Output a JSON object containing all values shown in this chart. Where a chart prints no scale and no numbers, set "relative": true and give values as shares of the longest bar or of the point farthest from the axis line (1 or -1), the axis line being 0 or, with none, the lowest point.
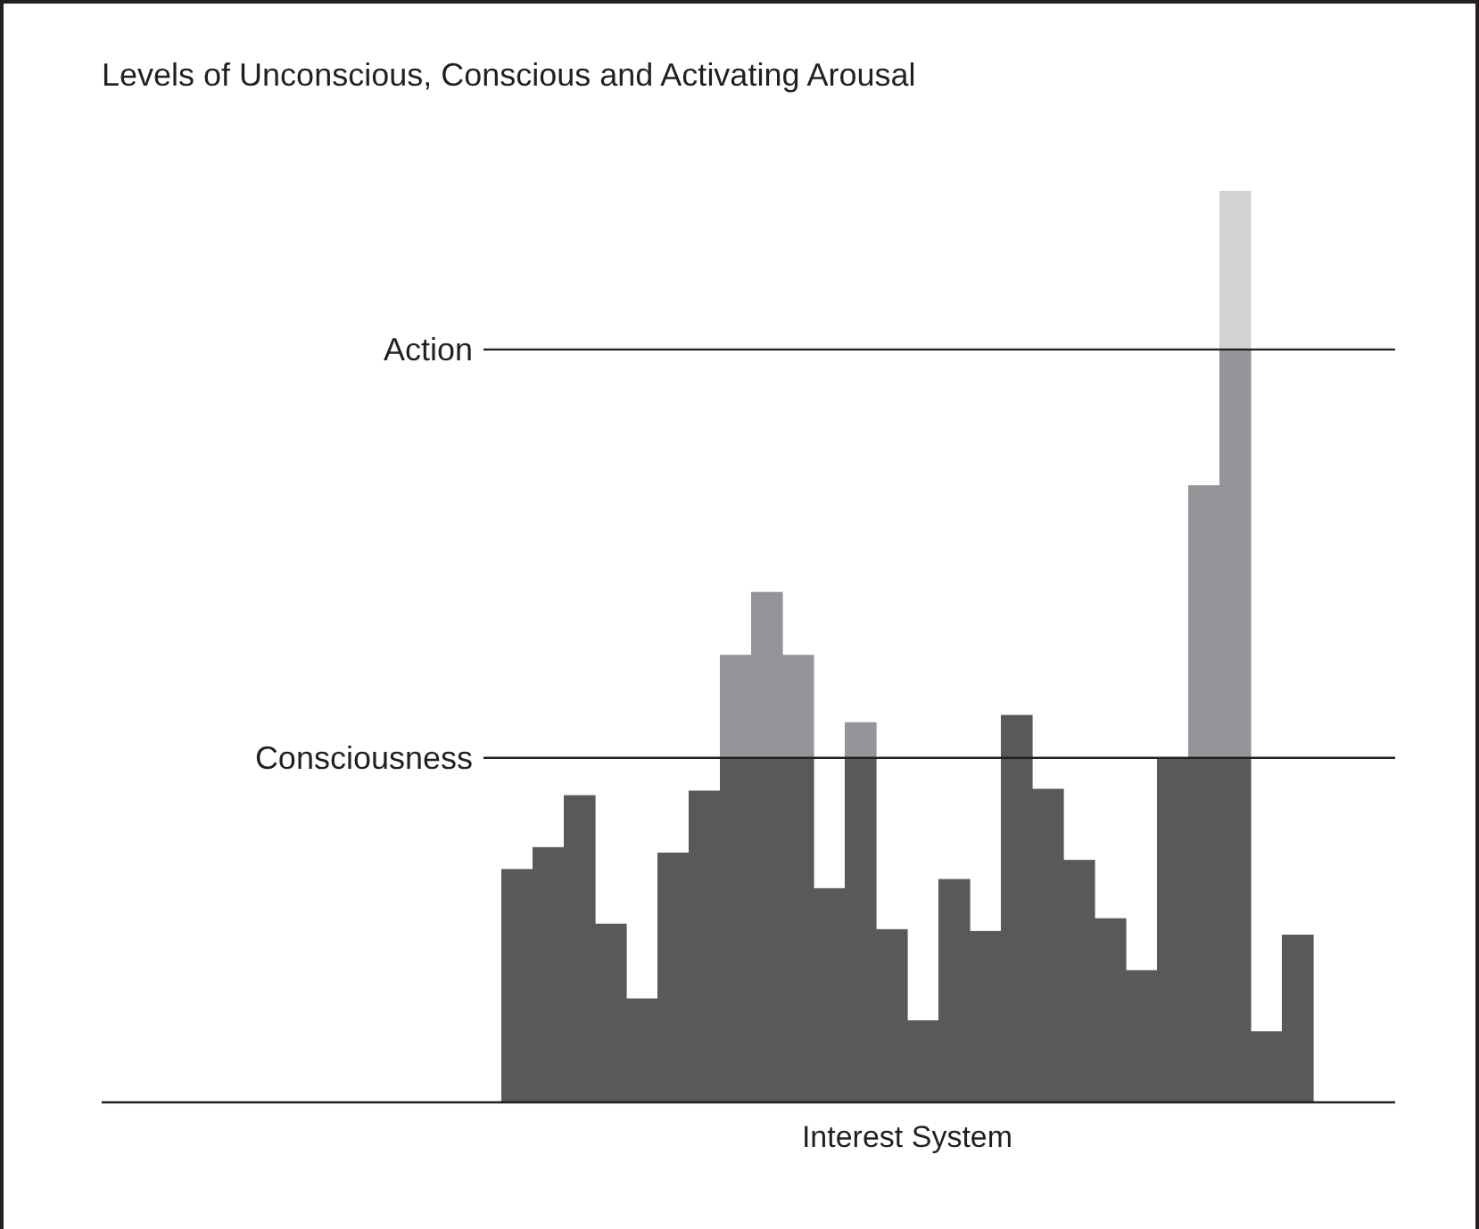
{
  "chart_data": {
    "type": "bar",
    "title": "Levels of Unconscious, Conscious and Activating Arousal",
    "xlabel": "Interest System",
    "relative": true,
    "stacked": true,
    "categories": [
      null,
      null,
      null,
      null,
      null,
      null,
      null,
      null,
      null,
      null,
      null,
      null,
      null,
      null,
      null,
      null,
      null,
      null,
      null,
      null,
      null,
      null,
      null,
      null,
      null,
      null
    ],
    "series": [
      {
        "color": "#58595b",
        "values": [
          0.256,
          0.28,
          0.337,
          0.196,
          0.114,
          0.274,
          0.342,
          0.378,
          0.378,
          0.378,
          0.235,
          0.378,
          0.19,
          0.09,
          0.245,
          0.188,
          0.425,
          0.344,
          0.266,
          0.202,
          0.145,
          0.378,
          0.378,
          0.378,
          0.078,
          0.184
        ]
      },
      {
        "color": "#939598",
        "values": [
          null,
          null,
          null,
          null,
          null,
          null,
          null,
          0.113,
          0.182,
          0.113,
          null,
          0.039,
          null,
          null,
          null,
          null,
          null,
          null,
          null,
          null,
          null,
          null,
          0.299,
          0.448,
          null,
          null
        ]
      },
      {
        "color": "#d1d3d4",
        "values": [
          null,
          null,
          null,
          null,
          null,
          null,
          null,
          null,
          null,
          null,
          null,
          null,
          null,
          null,
          null,
          null,
          null,
          null,
          null,
          null,
          null,
          null,
          null,
          0.174,
          null,
          null
        ]
      }
    ],
    "ref_lines": [
      {
        "axis": "y",
        "value": 0.826,
        "label": "Action",
        "color": "#231f20"
      },
      {
        "axis": "y",
        "value": 0.378,
        "label": "Consciousness",
        "color": "#231f20"
      }
    ]
  }
}
